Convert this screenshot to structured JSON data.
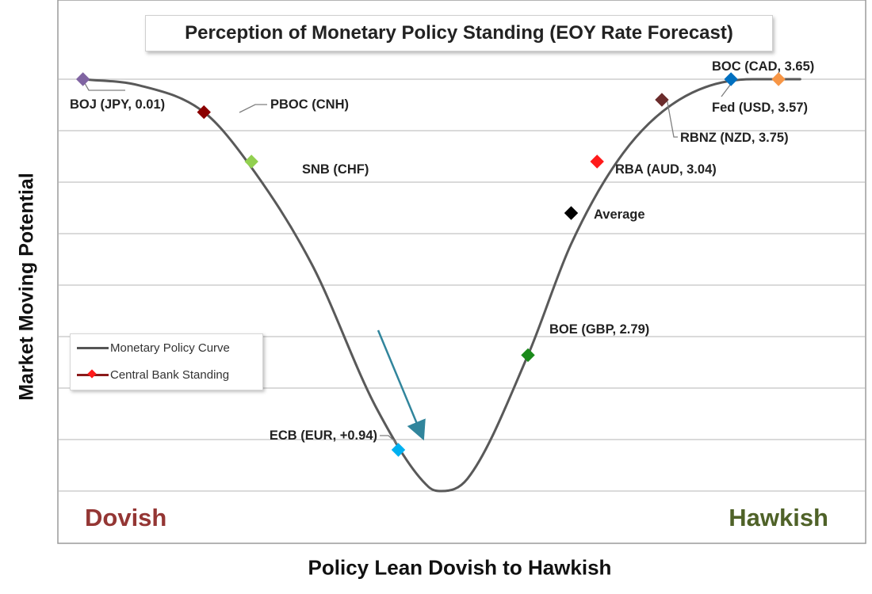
{
  "chart_data": {
    "type": "line",
    "title": "Perception of Monetary Policy Standing (EOY Rate Forecast)",
    "xlabel": "Policy Lean Dovish to Hawkish",
    "ylabel": "Market Moving Potential",
    "corner_labels": {
      "left": "Dovish",
      "right": "Hawkish"
    },
    "grid": true,
    "legend_placement": "left-middle",
    "legend": [
      {
        "name": "Monetary Policy Curve",
        "marker": "line"
      },
      {
        "name": "Central Bank Standing",
        "marker": "line-diamond"
      }
    ],
    "x_range": [
      -1,
      1
    ],
    "y_range": [
      0,
      1
    ],
    "curve": {
      "name": "Monetary Policy Curve",
      "x": [
        -0.83,
        -0.7,
        -0.55,
        -0.45,
        -0.3,
        -0.15,
        -0.03,
        0,
        0.06,
        0.2,
        0.3,
        0.42,
        0.55,
        0.72,
        0.83
      ],
      "y": [
        1.0,
        0.985,
        0.92,
        0.8,
        0.55,
        0.2,
        0.01,
        0.0,
        0.03,
        0.33,
        0.6,
        0.82,
        0.95,
        1.0,
        1.0
      ]
    },
    "points": [
      {
        "label": "BOJ (JPY, 0.01)",
        "x": -0.83,
        "y": 1.0,
        "color": "#8064a2"
      },
      {
        "label": "PBOC (CNH)",
        "x": -0.55,
        "y": 0.92,
        "color": "#8b0000"
      },
      {
        "label": "SNB (CHF)",
        "x": -0.44,
        "y": 0.8,
        "color": "#92d050"
      },
      {
        "label": "ECB (EUR, +0.94)",
        "x": -0.1,
        "y": 0.1,
        "color": "#00b0f0"
      },
      {
        "label": "BOE (GBP, 2.79)",
        "x": 0.2,
        "y": 0.33,
        "color": "#1a8a1a"
      },
      {
        "label": "Average",
        "x": 0.3,
        "y": 0.675,
        "color": "#000000"
      },
      {
        "label": "RBA (AUD, 3.04)",
        "x": 0.36,
        "y": 0.8,
        "color": "#ff1a1a"
      },
      {
        "label": "RBNZ (NZD, 3.75)",
        "x": 0.51,
        "y": 0.95,
        "color": "#6b2c2c"
      },
      {
        "label": "Fed (USD, 3.57)",
        "x": 0.67,
        "y": 1.0,
        "color": "#0070c0"
      },
      {
        "label": "BOC (CAD, 3.65)",
        "x": 0.78,
        "y": 1.0,
        "color": "#f79646"
      }
    ],
    "annotations": [
      {
        "type": "arrow",
        "color": "#31859c",
        "note": "pointing down toward ECB"
      }
    ]
  }
}
